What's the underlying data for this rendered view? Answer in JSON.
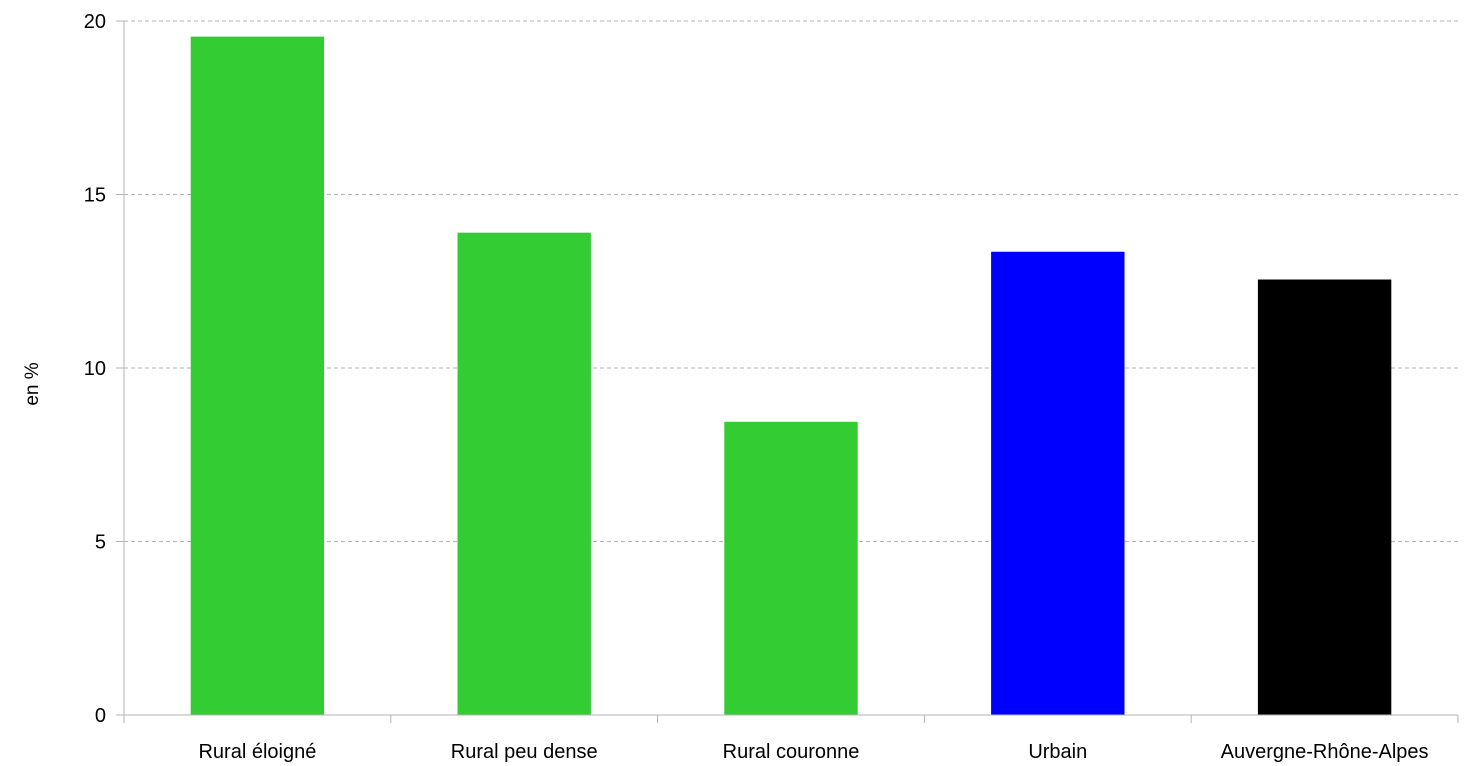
{
  "chart_data": {
    "type": "bar",
    "categories": [
      "Rural éloigné",
      "Rural peu dense",
      "Rural couronne",
      "Urbain",
      "Auvergne-Rhône-Alpes"
    ],
    "values": [
      19.55,
      13.9,
      8.45,
      13.35,
      12.55
    ],
    "colors": [
      "#33cc33",
      "#33cc33",
      "#33cc33",
      "#0000ff",
      "#000000"
    ],
    "title": "",
    "xlabel": "",
    "ylabel": "en %",
    "ylim": [
      0,
      20
    ],
    "yticks": [
      0,
      5,
      10,
      15,
      20
    ],
    "grid": true,
    "grid_style": "dashed",
    "legend": "none"
  }
}
